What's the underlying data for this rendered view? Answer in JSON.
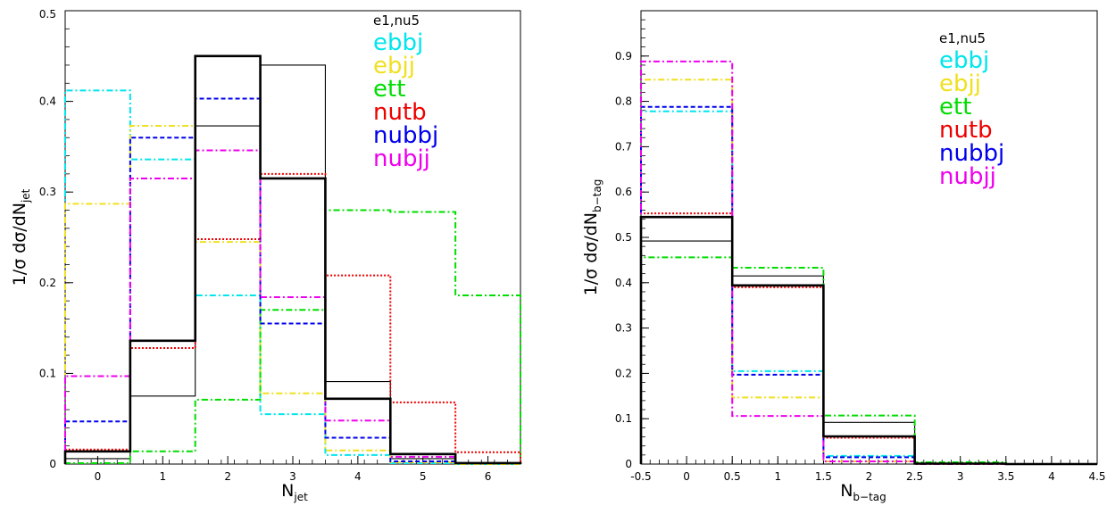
{
  "chart_data": [
    {
      "type": "histogram",
      "xlabel": "N_jet",
      "ylabel": "1/σ dσ/dN_jet",
      "xlim": [
        -0.5,
        6.5
      ],
      "ylim": [
        0,
        0.5
      ],
      "xticks": [
        0,
        1,
        2,
        3,
        4,
        5,
        6
      ],
      "yticks": [
        0,
        0.1,
        0.2,
        0.3,
        0.4,
        0.5
      ],
      "bin_edges": [
        -0.5,
        0.5,
        1.5,
        2.5,
        3.5,
        4.5,
        5.5,
        6.5
      ],
      "legend_position": "top-right",
      "series": [
        {
          "name": "e1,nu5",
          "color": "#000000",
          "style": "solid-thin",
          "values": [
            0.006,
            0.075,
            0.373,
            0.44,
            0.091,
            0.006,
            0.001
          ]
        },
        {
          "name": "ebbj",
          "color": "#00e5ee",
          "style": "dashdot",
          "values": [
            0.412,
            0.336,
            0.186,
            0.055,
            0.01,
            0.001,
            0
          ]
        },
        {
          "name": "ebjj",
          "color": "#f0e020",
          "style": "dashdot",
          "values": [
            0.287,
            0.373,
            0.245,
            0.078,
            0.015,
            0.002,
            0
          ]
        },
        {
          "name": "ett",
          "color": "#00dd00",
          "style": "dashdot",
          "values": [
            0.001,
            0.014,
            0.071,
            0.17,
            0.28,
            0.278,
            0.186
          ]
        },
        {
          "name": "nutb",
          "color": "#ee0000",
          "style": "dotted",
          "values": [
            0.016,
            0.128,
            0.248,
            0.32,
            0.208,
            0.068,
            0.013
          ]
        },
        {
          "name": "nubbj",
          "color": "#0000ee",
          "style": "dashed",
          "values": [
            0.047,
            0.36,
            0.403,
            0.155,
            0.029,
            0.003,
            0.001
          ]
        },
        {
          "name": "nubjj",
          "color": "#ee00ee",
          "style": "dashdot",
          "values": [
            0.097,
            0.315,
            0.346,
            0.184,
            0.048,
            0.008,
            0.001
          ]
        },
        {
          "name": "",
          "color": "#000000",
          "style": "solid-thick",
          "values": [
            0.014,
            0.136,
            0.45,
            0.315,
            0.072,
            0.011,
            0.001
          ]
        }
      ]
    },
    {
      "type": "histogram",
      "xlabel": "N_b-tag",
      "ylabel": "1/σ dσ/dN_b-tag",
      "xlim": [
        -0.5,
        4.5
      ],
      "ylim": [
        0,
        1.0
      ],
      "xticks": [
        -0.5,
        0,
        0.5,
        1,
        1.5,
        2,
        2.5,
        3,
        3.5,
        4,
        4.5
      ],
      "yticks": [
        0,
        0.1,
        0.2,
        0.3,
        0.4,
        0.5,
        0.6,
        0.7,
        0.8,
        0.9
      ],
      "bin_edges": [
        -0.5,
        0.5,
        1.5,
        2.5,
        3.5,
        4.5
      ],
      "legend_position": "top-right",
      "series": [
        {
          "name": "e1,nu5",
          "color": "#000000",
          "style": "solid-thin",
          "values": [
            0.492,
            0.415,
            0.092,
            0.001,
            0
          ]
        },
        {
          "name": "ebbj",
          "color": "#00e5ee",
          "style": "dashdot",
          "values": [
            0.778,
            0.205,
            0.018,
            0.001,
            0
          ]
        },
        {
          "name": "ebjj",
          "color": "#f0e020",
          "style": "dashdot",
          "values": [
            0.848,
            0.147,
            0.006,
            0,
            0
          ]
        },
        {
          "name": "ett",
          "color": "#00dd00",
          "style": "dashdot",
          "values": [
            0.456,
            0.433,
            0.107,
            0.004,
            0
          ]
        },
        {
          "name": "nutb",
          "color": "#ee0000",
          "style": "dotted",
          "values": [
            0.553,
            0.39,
            0.058,
            0.001,
            0
          ]
        },
        {
          "name": "nubbj",
          "color": "#0000ee",
          "style": "dashed",
          "values": [
            0.788,
            0.197,
            0.015,
            0.001,
            0
          ]
        },
        {
          "name": "nubjj",
          "color": "#ee00ee",
          "style": "dashdot",
          "values": [
            0.888,
            0.106,
            0.006,
            0,
            0
          ]
        },
        {
          "name": "",
          "color": "#000000",
          "style": "solid-thick",
          "values": [
            0.545,
            0.394,
            0.061,
            0.001,
            0
          ]
        }
      ]
    }
  ]
}
